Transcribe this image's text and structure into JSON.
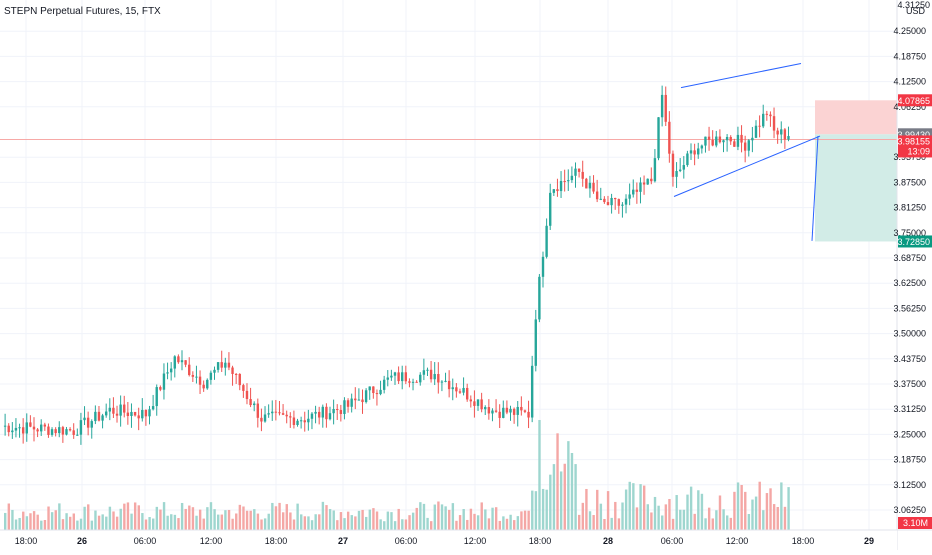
{
  "header": {
    "symbol_title": "STEPN Perpetual Futures, 15, FTX"
  },
  "colors": {
    "up": "#26a69a",
    "down": "#ef5350",
    "volume_up": "#9ed6cf",
    "volume_down": "#f4a7a5",
    "trendline": "#2962ff",
    "price_line": "#f7a9a7",
    "grid": "#f0f3fa",
    "axis_text": "#131722",
    "stop_zone": "#fbd3d3",
    "target_zone": "#d2ece7"
  },
  "axis": {
    "currency": "USD",
    "top_partial": "4.31250",
    "y_ticks": [
      "4.25000",
      "4.18750",
      "4.12500",
      "4.06250",
      "3.93750",
      "3.87500",
      "3.81250",
      "3.75000",
      "3.68750",
      "3.62500",
      "3.56250",
      "3.50000",
      "3.43750",
      "3.37500",
      "3.31250",
      "3.25000",
      "3.18750",
      "3.12500",
      "3.06250"
    ],
    "x_ticks": [
      "18:00",
      "26",
      "06:00",
      "12:00",
      "18:00",
      "27",
      "06:00",
      "12:00",
      "18:00",
      "28",
      "06:00",
      "12:00",
      "18:00",
      "29"
    ],
    "x_ticks_bold": [
      "26",
      "27",
      "28",
      "29"
    ]
  },
  "price_labels": {
    "stop_price": "4.07865",
    "entry_price": "3.99430",
    "last_price": "3.98155",
    "countdown": "13:09",
    "target_price": "3.72850",
    "volume_value": "3.10M"
  },
  "chart_data": {
    "type": "candlestick",
    "title": "STEPN Perpetual Futures, 15, FTX",
    "ylabel": "USD",
    "ylim": [
      3.0,
      4.32
    ],
    "time_range": "25 18:00 – 29",
    "series": [
      {
        "name": "price",
        "note": "15-minute candles, approximate anchor closes",
        "anchors": [
          [
            0,
            3.27
          ],
          [
            20,
            3.26
          ],
          [
            30,
            3.31
          ],
          [
            40,
            3.3
          ],
          [
            48,
            3.44
          ],
          [
            56,
            3.38
          ],
          [
            62,
            3.43
          ],
          [
            72,
            3.29
          ],
          [
            84,
            3.29
          ],
          [
            96,
            3.32
          ],
          [
            108,
            3.39
          ],
          [
            120,
            3.4
          ],
          [
            136,
            3.31
          ],
          [
            146,
            3.3
          ],
          [
            148,
            3.55
          ],
          [
            152,
            3.86
          ],
          [
            160,
            3.9
          ],
          [
            166,
            3.82
          ],
          [
            172,
            3.82
          ],
          [
            180,
            3.88
          ],
          [
            183,
            4.09
          ],
          [
            186,
            3.88
          ],
          [
            192,
            3.96
          ],
          [
            200,
            3.99
          ],
          [
            206,
            3.97
          ],
          [
            212,
            4.05
          ],
          [
            214,
            4.0
          ],
          [
            218,
            3.99
          ]
        ]
      },
      {
        "name": "volume",
        "note": "relative volume; max bar near session open of 27 18:00"
      }
    ],
    "annotations": {
      "channel_upper": [
        [
          190,
          4.11
        ],
        [
          225,
          4.17
        ]
      ],
      "channel_lower": [
        [
          187,
          3.84
        ],
        [
          230,
          3.99
        ]
      ],
      "position": {
        "entry": 3.9943,
        "stop": 4.07865,
        "target": 3.7285
      }
    }
  }
}
